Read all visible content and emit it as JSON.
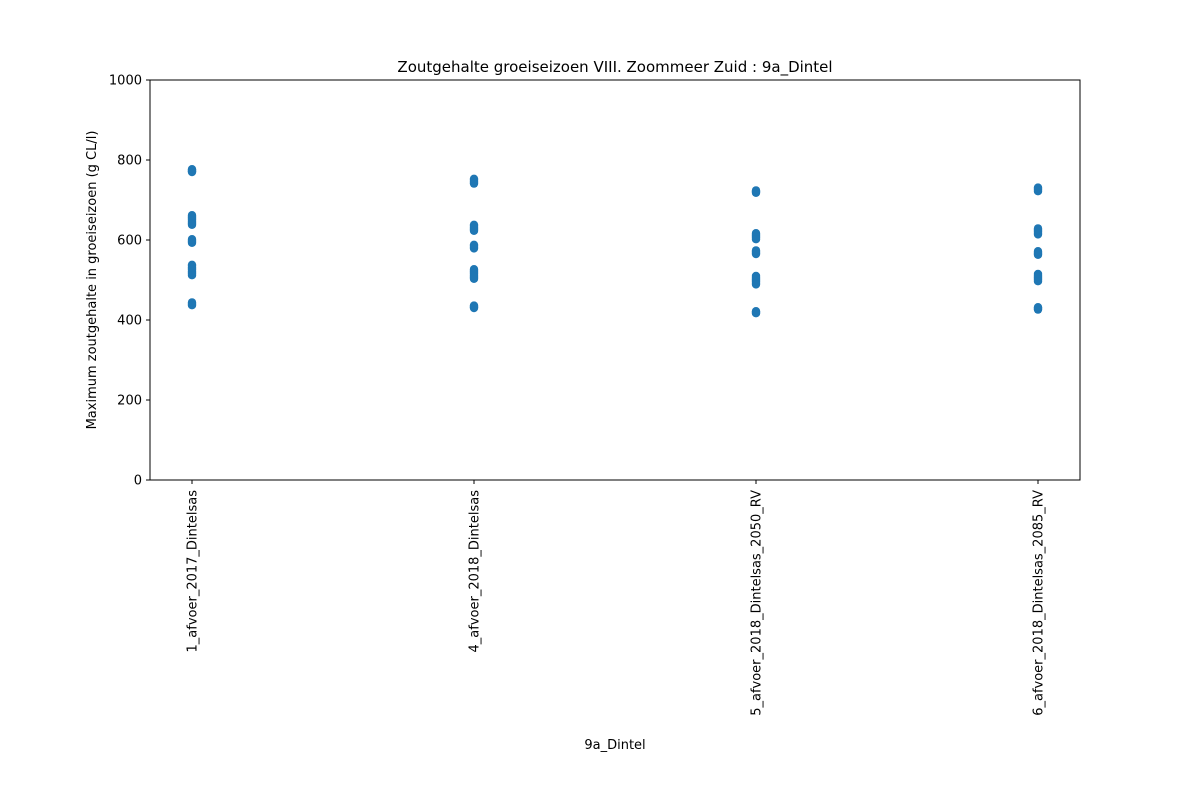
{
  "chart_data": {
    "type": "scatter",
    "title": "Zoutgehalte groeiseizoen VIII. Zoommeer Zuid : 9a_Dintel",
    "xlabel": "9a_Dintel",
    "ylabel": "Maximum zoutgehalte in groeiseizoen (g CL/l)",
    "ylim": [
      0,
      1000
    ],
    "yticks": [
      0,
      200,
      400,
      600,
      800,
      1000
    ],
    "grid": false,
    "marker_color": "#1f77b4",
    "categories": [
      "1_afvoer_2017_Dintelsas",
      "4_afvoer_2018_Dintelsas",
      "5_afvoer_2018_Dintelsas_2050_RV",
      "6_afvoer_2018_Dintelsas_2085_RV"
    ],
    "series": [
      {
        "values": [
          [
            771,
            773,
            775,
            777,
            770,
            641,
            644,
            647,
            650,
            653,
            656,
            659,
            662,
            638,
            593,
            596,
            599,
            602,
            535,
            538,
            531,
            528,
            525,
            521,
            518,
            515,
            512,
            439,
            442,
            444,
            437
          ],
          [
            744,
            747,
            750,
            753,
            741,
            626,
            629,
            632,
            635,
            638,
            623,
            579,
            582,
            585,
            588,
            527,
            524,
            521,
            518,
            515,
            512,
            509,
            506,
            503,
            430,
            432,
            434,
            436
          ],
          [
            718,
            720,
            722,
            724,
            605,
            608,
            611,
            614,
            617,
            602,
            565,
            568,
            571,
            574,
            510,
            507,
            504,
            501,
            498,
            495,
            492,
            489,
            418,
            420,
            422,
            417
          ],
          [
            722,
            725,
            728,
            731,
            614,
            617,
            620,
            623,
            626,
            629,
            563,
            566,
            569,
            572,
            515,
            512,
            509,
            506,
            503,
            500,
            497,
            426,
            428,
            430,
            432
          ]
        ]
      }
    ]
  }
}
